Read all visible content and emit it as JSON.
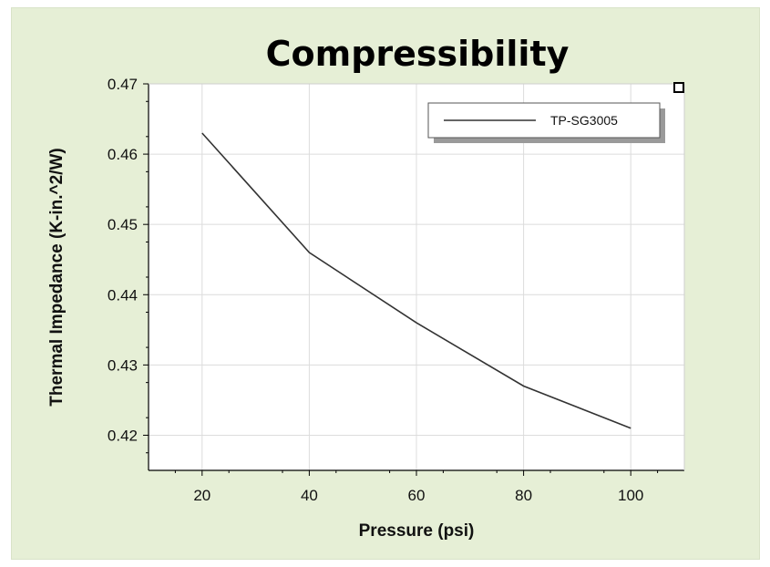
{
  "chart_data": {
    "type": "line",
    "title": "Compressibility",
    "xlabel": "Pressure (psi)",
    "ylabel": "Thermal Impedance (K-in.^2/W)",
    "xlim": [
      10,
      110
    ],
    "ylim": [
      0.415,
      0.47
    ],
    "x_ticks": [
      20,
      40,
      60,
      80,
      100
    ],
    "x_tick_labels": [
      "20",
      "40",
      "60",
      "80",
      "100"
    ],
    "y_ticks": [
      0.42,
      0.43,
      0.44,
      0.45,
      0.46,
      0.47
    ],
    "y_tick_labels": [
      "0.42",
      "0.43",
      "0.44",
      "0.45",
      "0.46",
      "0.47"
    ],
    "grid": true,
    "legend_position": "top-right",
    "series": [
      {
        "name": "TP-SG3005",
        "color": "#333333",
        "x": [
          20,
          40,
          60,
          80,
          100
        ],
        "y": [
          0.463,
          0.446,
          0.436,
          0.427,
          0.421
        ]
      }
    ]
  },
  "colors": {
    "background": "#e6efd6",
    "plot_area": "#ffffff",
    "grid": "#dcdcdc",
    "line": "#333333"
  }
}
